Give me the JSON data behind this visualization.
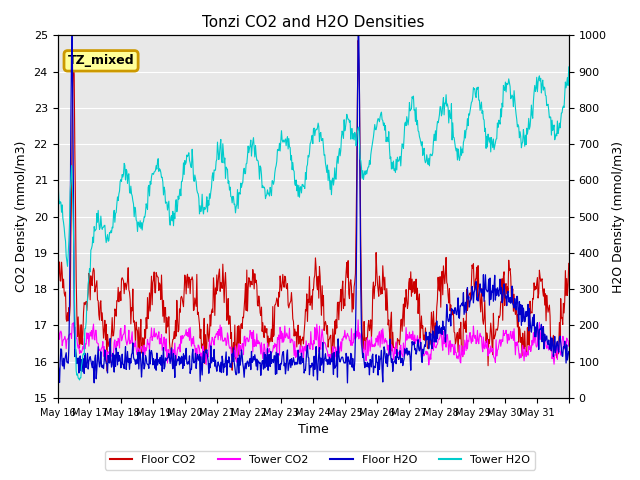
{
  "title": "Tonzi CO2 and H2O Densities",
  "xlabel": "Time",
  "ylabel_left": "CO2 Density (mmol/m3)",
  "ylabel_right": "H2O Density (mmol/m3)",
  "ylim_left": [
    15.0,
    25.0
  ],
  "ylim_right": [
    0,
    1000
  ],
  "annotation_text": "TZ_mixed",
  "annotation_color": "#cc9900",
  "background_color": "#e8e8e8",
  "colors": {
    "floor_co2": "#cc0000",
    "tower_co2": "#ff00ff",
    "floor_h2o": "#0000cc",
    "tower_h2o": "#00cccc"
  },
  "n_days": 16,
  "tick_positions": [
    0,
    1,
    2,
    3,
    4,
    5,
    6,
    7,
    8,
    9,
    10,
    11,
    12,
    13,
    14,
    15,
    16
  ],
  "tick_labels": [
    "May 16",
    "May 17",
    "May 18",
    "May 19",
    "May 20",
    "May 21",
    "May 22",
    "May 23",
    "May 24",
    "May 25",
    "May 26",
    "May 27",
    "May 28",
    "May 29",
    "May 30",
    "May 31",
    ""
  ]
}
